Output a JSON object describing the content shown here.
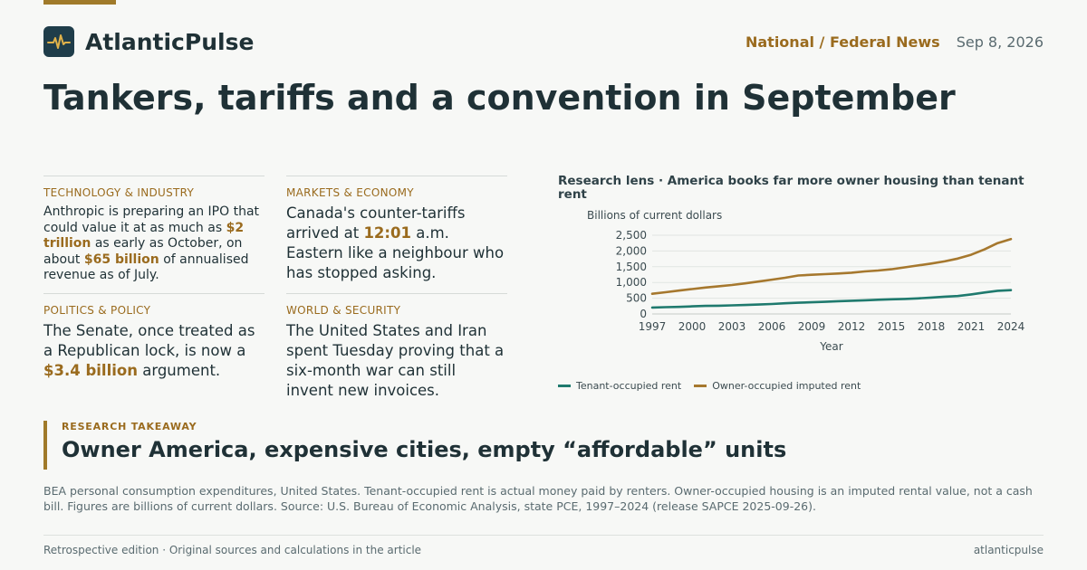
{
  "brand": {
    "name": "AtlanticPulse",
    "logo_icon": "pulse-icon"
  },
  "header": {
    "section": "National / Federal News",
    "date": "Sep 8, 2026"
  },
  "headline": "Tankers, tariffs and a convention in September",
  "stories": [
    {
      "kicker": "TECHNOLOGY & INDUSTRY",
      "parts": [
        "Anthropic is preparing an IPO that could value it at as much as ",
        "$2 trillion",
        " as early as October, on about ",
        "$65 billion",
        " of annualised revenue as of July."
      ]
    },
    {
      "kicker": "MARKETS & ECONOMY",
      "parts": [
        "Canada's counter-tariffs arrived at ",
        "12:01",
        " a.m. Eastern like a neighbour who has stopped asking."
      ]
    },
    {
      "kicker": "POLITICS & POLICY",
      "parts": [
        "The Senate, once treated as a Republican lock, is now a ",
        "$3.4 billion",
        " argument."
      ]
    },
    {
      "kicker": "WORLD & SECURITY",
      "parts": [
        "The United States and Iran spent Tuesday proving that a six-month war can still invent new invoices."
      ]
    }
  ],
  "chart_title": "Research lens · America books far more owner housing than tenant rent",
  "chart_data": {
    "type": "line",
    "title": "Research lens · America books far more owner housing than tenant rent",
    "ylabel": "Billions of current dollars",
    "xlabel": "Year",
    "x": [
      1997,
      1998,
      1999,
      2000,
      2001,
      2002,
      2003,
      2004,
      2005,
      2006,
      2007,
      2008,
      2009,
      2010,
      2011,
      2012,
      2013,
      2014,
      2015,
      2016,
      2017,
      2018,
      2019,
      2020,
      2021,
      2022,
      2023,
      2024
    ],
    "xticks": [
      1997,
      2000,
      2003,
      2006,
      2009,
      2012,
      2015,
      2018,
      2021,
      2024
    ],
    "yticks": [
      0,
      500,
      1000,
      1500,
      2000,
      2500
    ],
    "ylim": [
      0,
      2500
    ],
    "grid": true,
    "legend_position": "bottom",
    "series": [
      {
        "name": "Tenant-occupied rent",
        "color": "#1f7a6e",
        "values": [
          205,
          215,
          225,
          240,
          255,
          262,
          272,
          285,
          300,
          315,
          338,
          355,
          370,
          385,
          405,
          420,
          435,
          450,
          465,
          478,
          495,
          520,
          548,
          570,
          620,
          680,
          735,
          755
        ]
      },
      {
        "name": "Owner-occupied imputed rent",
        "color": "#a6782e",
        "values": [
          640,
          690,
          740,
          790,
          840,
          880,
          920,
          970,
          1030,
          1090,
          1150,
          1220,
          1245,
          1265,
          1285,
          1310,
          1350,
          1380,
          1420,
          1480,
          1540,
          1600,
          1670,
          1760,
          1880,
          2050,
          2250,
          2380
        ]
      }
    ]
  },
  "takeaway": {
    "kicker": "RESEARCH TAKEAWAY",
    "title": "Owner America, expensive cities, empty “affordable” units"
  },
  "note": "BEA personal consumption expenditures, United States. Tenant-occupied rent is actual money paid by renters. Owner-occupied housing is an imputed rental value, not a cash bill. Figures are billions of current dollars. Source: U.S. Bureau of Economic Analysis, state PCE, 1997–2024 (release SAPCE 2025-09-26).",
  "footer": {
    "left": "Retrospective edition · Original sources and calculations in the article",
    "right": "atlanticpulse"
  },
  "colors": {
    "accent": "#a07a2a",
    "ink": "#1f3136",
    "muted": "#5a6b70"
  }
}
